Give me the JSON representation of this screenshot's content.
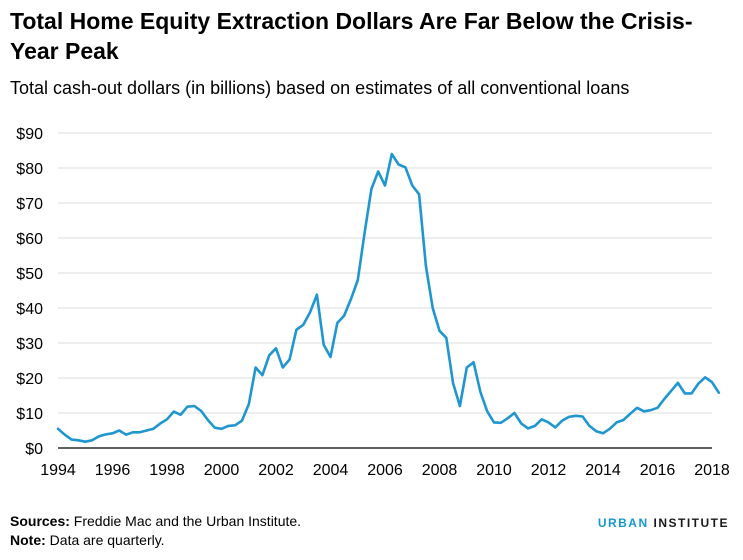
{
  "chart_data": {
    "type": "line",
    "title": "Total Home Equity Extraction Dollars Are Far Below the Crisis-Year Peak",
    "subtitle": "Total cash-out dollars (in billions) based on estimates of all conventional loans",
    "xlabel": "",
    "ylabel": "",
    "xlim": [
      1994,
      2018
    ],
    "ylim": [
      0,
      90
    ],
    "x_ticks": [
      "1994",
      "1996",
      "1998",
      "2000",
      "2002",
      "2004",
      "2006",
      "2008",
      "2010",
      "2012",
      "2014",
      "2016",
      "2018"
    ],
    "y_ticks": [
      "$0",
      "$10",
      "$20",
      "$30",
      "$40",
      "$50",
      "$60",
      "$70",
      "$80",
      "$90"
    ],
    "grid": "horizontal",
    "legend": "none",
    "colors": {
      "line": "#1f96d0",
      "grid": "#dcdcdc",
      "axis": "#000000"
    },
    "series": [
      {
        "values": [
          [
            1994.0,
            5.5
          ],
          [
            1994.25,
            3.8
          ],
          [
            1994.5,
            2.4
          ],
          [
            1994.75,
            2.2
          ],
          [
            1995.0,
            1.8
          ],
          [
            1995.25,
            2.2
          ],
          [
            1995.5,
            3.3
          ],
          [
            1995.75,
            3.9
          ],
          [
            1996.0,
            4.2
          ],
          [
            1996.25,
            5.0
          ],
          [
            1996.5,
            3.8
          ],
          [
            1996.75,
            4.5
          ],
          [
            1997.0,
            4.5
          ],
          [
            1997.25,
            5.0
          ],
          [
            1997.5,
            5.5
          ],
          [
            1997.75,
            7.0
          ],
          [
            1998.0,
            8.2
          ],
          [
            1998.25,
            10.4
          ],
          [
            1998.5,
            9.5
          ],
          [
            1998.75,
            11.8
          ],
          [
            1999.0,
            12.0
          ],
          [
            1999.25,
            10.6
          ],
          [
            1999.5,
            8.0
          ],
          [
            1999.75,
            5.8
          ],
          [
            2000.0,
            5.5
          ],
          [
            2000.25,
            6.3
          ],
          [
            2000.5,
            6.5
          ],
          [
            2000.75,
            7.8
          ],
          [
            2001.0,
            12.5
          ],
          [
            2001.25,
            23.0
          ],
          [
            2001.5,
            20.8
          ],
          [
            2001.75,
            26.5
          ],
          [
            2002.0,
            28.5
          ],
          [
            2002.25,
            23.0
          ],
          [
            2002.5,
            25.3
          ],
          [
            2002.75,
            33.8
          ],
          [
            2003.0,
            35.2
          ],
          [
            2003.25,
            38.8
          ],
          [
            2003.5,
            43.8
          ],
          [
            2003.75,
            29.5
          ],
          [
            2004.0,
            26.0
          ],
          [
            2004.25,
            35.7
          ],
          [
            2004.5,
            37.8
          ],
          [
            2004.75,
            42.5
          ],
          [
            2005.0,
            48.0
          ],
          [
            2005.25,
            61.5
          ],
          [
            2005.5,
            74.0
          ],
          [
            2005.75,
            79.0
          ],
          [
            2006.0,
            75.0
          ],
          [
            2006.25,
            84.0
          ],
          [
            2006.5,
            81.0
          ],
          [
            2006.75,
            80.2
          ],
          [
            2007.0,
            75.0
          ],
          [
            2007.25,
            72.5
          ],
          [
            2007.5,
            52.0
          ],
          [
            2007.75,
            40.0
          ],
          [
            2008.0,
            33.5
          ],
          [
            2008.25,
            31.5
          ],
          [
            2008.5,
            18.5
          ],
          [
            2008.75,
            12.0
          ],
          [
            2009.0,
            23.0
          ],
          [
            2009.25,
            24.5
          ],
          [
            2009.5,
            16.0
          ],
          [
            2009.75,
            10.5
          ],
          [
            2010.0,
            7.3
          ],
          [
            2010.25,
            7.2
          ],
          [
            2010.5,
            8.5
          ],
          [
            2010.75,
            10.0
          ],
          [
            2011.0,
            7.0
          ],
          [
            2011.25,
            5.6
          ],
          [
            2011.5,
            6.3
          ],
          [
            2011.75,
            8.2
          ],
          [
            2012.0,
            7.3
          ],
          [
            2012.25,
            5.9
          ],
          [
            2012.5,
            7.8
          ],
          [
            2012.75,
            8.9
          ],
          [
            2013.0,
            9.2
          ],
          [
            2013.25,
            9.0
          ],
          [
            2013.5,
            6.3
          ],
          [
            2013.75,
            4.8
          ],
          [
            2014.0,
            4.2
          ],
          [
            2014.25,
            5.5
          ],
          [
            2014.5,
            7.3
          ],
          [
            2014.75,
            8.0
          ],
          [
            2015.0,
            9.8
          ],
          [
            2015.25,
            11.5
          ],
          [
            2015.5,
            10.5
          ],
          [
            2015.75,
            10.8
          ],
          [
            2016.0,
            11.5
          ],
          [
            2016.25,
            14.0
          ],
          [
            2016.5,
            16.3
          ],
          [
            2016.75,
            18.6
          ],
          [
            2017.0,
            15.6
          ],
          [
            2017.25,
            15.6
          ],
          [
            2017.5,
            18.4
          ],
          [
            2017.75,
            20.2
          ],
          [
            2018.0,
            18.8
          ],
          [
            2018.25,
            15.8
          ]
        ]
      }
    ]
  },
  "footer": {
    "sources_label": "Sources:",
    "sources_text": " Freddie Mac and the Urban Institute.",
    "note_label": "Note:",
    "note_text": " Data are quarterly.",
    "brand_part1": "URBAN",
    "brand_part2": "INSTITUTE"
  }
}
